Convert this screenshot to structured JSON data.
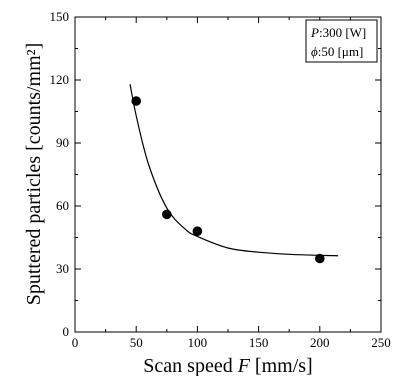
{
  "chart_data": {
    "type": "scatter",
    "xlabel_text": "Scan speed",
    "xlabel_symbol": "F",
    "xlabel_unit": "[mm/s]",
    "ylabel": "Sputtered particles [counts/mm²]",
    "xlim": [
      0,
      250
    ],
    "ylim": [
      0,
      150
    ],
    "xticks": [
      0,
      50,
      100,
      150,
      200,
      250
    ],
    "yticks": [
      0,
      30,
      60,
      90,
      120,
      150
    ],
    "grid": false,
    "legend_position": "top-right",
    "legend": [
      {
        "symbol": "P",
        "text": ":300 [W]"
      },
      {
        "symbol": "ϕ",
        "text": ":50 [μm]"
      }
    ],
    "series": [
      {
        "kind": "points",
        "x": [
          50,
          75,
          100,
          200
        ],
        "y": [
          110,
          56,
          48,
          35
        ]
      },
      {
        "kind": "fit_curve",
        "x": [
          45,
          50,
          60,
          75,
          90,
          100,
          125,
          150,
          175,
          200,
          215
        ],
        "y": [
          118,
          103,
          80,
          59,
          49,
          45.5,
          40,
          38,
          37,
          36.5,
          36.3
        ]
      }
    ]
  }
}
